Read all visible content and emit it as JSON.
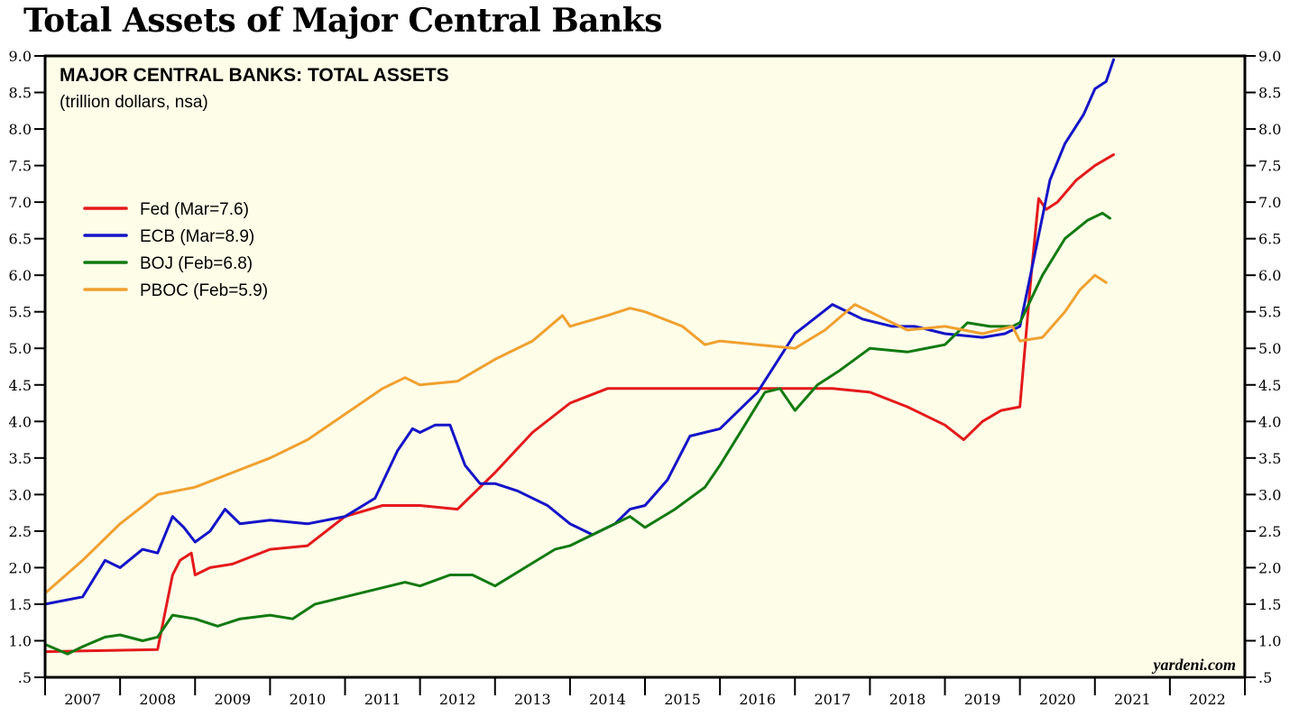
{
  "page": {
    "title": "Total Assets of Major Central Banks"
  },
  "chart_data": {
    "type": "line",
    "title": "MAJOR CENTRAL BANKS: TOTAL ASSETS",
    "subtitle": "(trillion dollars, nsa)",
    "source": "yardeni.com",
    "xlabel": "",
    "ylabel": "",
    "ylim": [
      0.5,
      9.0
    ],
    "xlim": [
      2007,
      2023
    ],
    "y_ticks": [
      "9.0",
      "8.5",
      "8.0",
      "7.5",
      "7.0",
      "6.5",
      "6.0",
      "5.5",
      "5.0",
      "4.5",
      "4.0",
      "3.5",
      "3.0",
      "2.5",
      "2.0",
      "1.5",
      "1.0",
      ".5"
    ],
    "y_tick_values": [
      9.0,
      8.5,
      8.0,
      7.5,
      7.0,
      6.5,
      6.0,
      5.5,
      5.0,
      4.5,
      4.0,
      3.5,
      3.0,
      2.5,
      2.0,
      1.5,
      1.0,
      0.5
    ],
    "x_tick_labels": [
      "2007",
      "2008",
      "2009",
      "2010",
      "2011",
      "2012",
      "2013",
      "2014",
      "2015",
      "2016",
      "2017",
      "2018",
      "2019",
      "2020",
      "2021",
      "2022"
    ],
    "grid": false,
    "legend_position": "top-left",
    "background": "#fefee8",
    "series": [
      {
        "name": "Fed (Mar=7.6)",
        "color": "#e31a1c",
        "x": [
          2007.0,
          2007.5,
          2008.0,
          2008.5,
          2008.7,
          2008.8,
          2008.95,
          2009.0,
          2009.2,
          2009.5,
          2010.0,
          2010.5,
          2011.0,
          2011.5,
          2012.0,
          2012.5,
          2013.0,
          2013.5,
          2014.0,
          2014.5,
          2015.0,
          2015.5,
          2016.0,
          2016.5,
          2017.0,
          2017.5,
          2018.0,
          2018.5,
          2019.0,
          2019.25,
          2019.5,
          2019.75,
          2020.0,
          2020.15,
          2020.25,
          2020.35,
          2020.5,
          2020.75,
          2021.0,
          2021.25
        ],
        "y": [
          0.85,
          0.86,
          0.87,
          0.88,
          1.9,
          2.1,
          2.2,
          1.9,
          2.0,
          2.05,
          2.25,
          2.3,
          2.7,
          2.85,
          2.85,
          2.8,
          3.3,
          3.85,
          4.25,
          4.45,
          4.45,
          4.45,
          4.45,
          4.45,
          4.45,
          4.45,
          4.4,
          4.2,
          3.95,
          3.75,
          4.0,
          4.15,
          4.2,
          6.0,
          7.05,
          6.9,
          7.0,
          7.3,
          7.5,
          7.65
        ]
      },
      {
        "name": "ECB (Mar=8.9)",
        "color": "#1414c8",
        "x": [
          2007.0,
          2007.5,
          2007.8,
          2008.0,
          2008.3,
          2008.5,
          2008.7,
          2008.85,
          2009.0,
          2009.2,
          2009.4,
          2009.6,
          2010.0,
          2010.5,
          2011.0,
          2011.4,
          2011.7,
          2011.9,
          2012.0,
          2012.2,
          2012.4,
          2012.6,
          2012.8,
          2013.0,
          2013.3,
          2013.7,
          2014.0,
          2014.3,
          2014.6,
          2014.8,
          2015.0,
          2015.3,
          2015.6,
          2016.0,
          2016.5,
          2017.0,
          2017.5,
          2017.9,
          2018.3,
          2018.6,
          2019.0,
          2019.5,
          2019.8,
          2020.0,
          2020.2,
          2020.4,
          2020.6,
          2020.85,
          2021.0,
          2021.15,
          2021.25
        ],
        "y": [
          1.5,
          1.6,
          2.1,
          2.0,
          2.25,
          2.2,
          2.7,
          2.55,
          2.35,
          2.5,
          2.8,
          2.6,
          2.65,
          2.6,
          2.7,
          2.95,
          3.6,
          3.9,
          3.85,
          3.95,
          3.95,
          3.4,
          3.15,
          3.15,
          3.05,
          2.85,
          2.6,
          2.45,
          2.6,
          2.8,
          2.85,
          3.2,
          3.8,
          3.9,
          4.4,
          5.2,
          5.6,
          5.4,
          5.3,
          5.3,
          5.2,
          5.15,
          5.2,
          5.3,
          6.3,
          7.3,
          7.8,
          8.2,
          8.55,
          8.65,
          8.95
        ]
      },
      {
        "name": "BOJ (Feb=6.8)",
        "color": "#117a11",
        "x": [
          2007.0,
          2007.3,
          2007.5,
          2007.8,
          2008.0,
          2008.3,
          2008.5,
          2008.7,
          2009.0,
          2009.3,
          2009.6,
          2010.0,
          2010.3,
          2010.6,
          2011.0,
          2011.4,
          2011.8,
          2012.0,
          2012.4,
          2012.7,
          2013.0,
          2013.4,
          2013.8,
          2014.0,
          2014.4,
          2014.8,
          2015.0,
          2015.4,
          2015.8,
          2016.0,
          2016.3,
          2016.6,
          2016.8,
          2017.0,
          2017.3,
          2017.6,
          2018.0,
          2018.5,
          2019.0,
          2019.3,
          2019.6,
          2019.9,
          2020.0,
          2020.3,
          2020.6,
          2020.9,
          2021.1,
          2021.2
        ],
        "y": [
          0.95,
          0.82,
          0.92,
          1.05,
          1.08,
          1.0,
          1.05,
          1.35,
          1.3,
          1.2,
          1.3,
          1.35,
          1.3,
          1.5,
          1.6,
          1.7,
          1.8,
          1.75,
          1.9,
          1.9,
          1.75,
          2.0,
          2.25,
          2.3,
          2.5,
          2.7,
          2.55,
          2.8,
          3.1,
          3.4,
          3.9,
          4.4,
          4.45,
          4.15,
          4.5,
          4.7,
          5.0,
          4.95,
          5.05,
          5.35,
          5.3,
          5.3,
          5.35,
          6.0,
          6.5,
          6.75,
          6.85,
          6.78
        ]
      },
      {
        "name": "PBOC (Feb=5.9)",
        "color": "#f0a030",
        "x": [
          2007.0,
          2007.5,
          2008.0,
          2008.5,
          2009.0,
          2009.5,
          2010.0,
          2010.5,
          2011.0,
          2011.5,
          2011.8,
          2012.0,
          2012.5,
          2013.0,
          2013.5,
          2013.9,
          2014.0,
          2014.5,
          2014.8,
          2015.0,
          2015.5,
          2015.8,
          2016.0,
          2016.5,
          2017.0,
          2017.4,
          2017.8,
          2018.2,
          2018.5,
          2019.0,
          2019.5,
          2019.9,
          2020.0,
          2020.3,
          2020.6,
          2020.8,
          2021.0,
          2021.15
        ],
        "y": [
          1.65,
          2.1,
          2.6,
          3.0,
          3.1,
          3.3,
          3.5,
          3.75,
          4.1,
          4.45,
          4.6,
          4.5,
          4.55,
          4.85,
          5.1,
          5.45,
          5.3,
          5.45,
          5.55,
          5.5,
          5.3,
          5.05,
          5.1,
          5.05,
          5.0,
          5.25,
          5.6,
          5.4,
          5.25,
          5.3,
          5.2,
          5.3,
          5.1,
          5.15,
          5.5,
          5.8,
          6.0,
          5.9
        ]
      }
    ]
  }
}
